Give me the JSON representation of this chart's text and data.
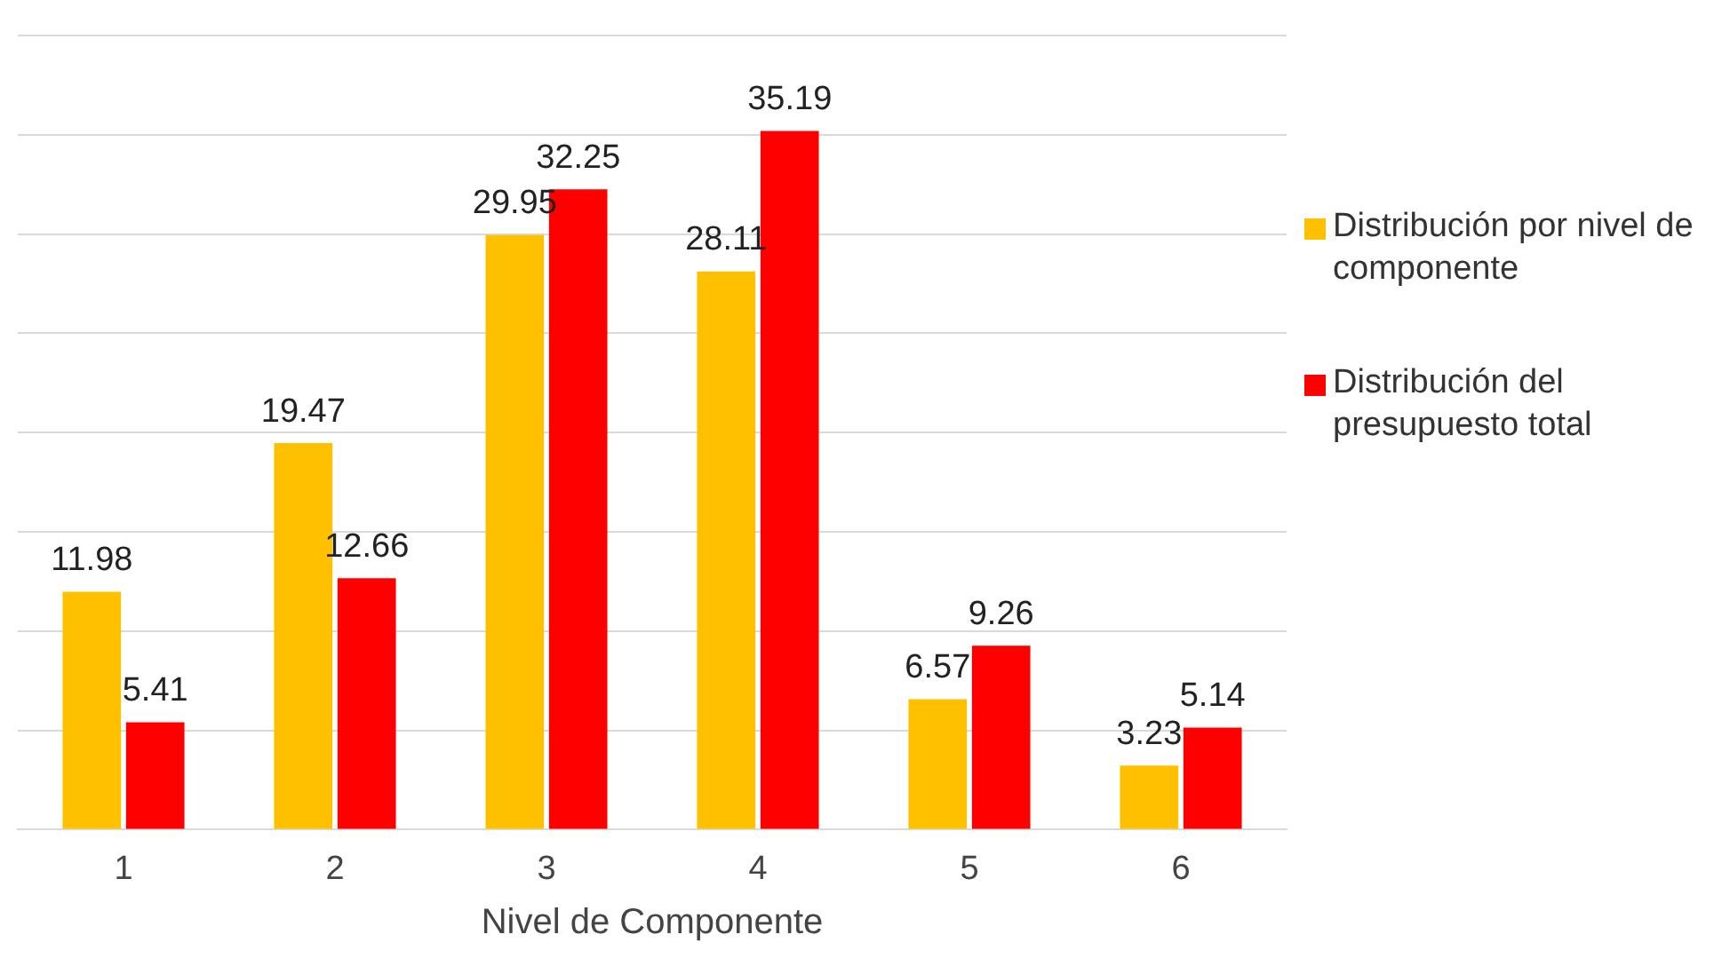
{
  "chart_data": {
    "type": "bar",
    "xlabel": "Nivel de Componente",
    "categories": [
      "1",
      "2",
      "3",
      "4",
      "5",
      "6"
    ],
    "series": [
      {
        "name": "Distribución por nivel de componente",
        "color": "#ffc000",
        "values": [
          11.98,
          19.47,
          29.95,
          28.11,
          6.57,
          3.23
        ]
      },
      {
        "name": "Distribución del presupuesto total",
        "color": "#ff0000",
        "values": [
          5.41,
          12.66,
          32.25,
          35.19,
          9.26,
          5.14
        ]
      }
    ],
    "ylim": [
      0,
      40
    ],
    "yticks": [
      {
        "value": 0,
        "label": null
      },
      {
        "value": 5,
        "label": null
      },
      {
        "value": 10,
        "label": null
      },
      {
        "value": 15,
        "label": null
      },
      {
        "value": 20,
        "label": null
      },
      {
        "value": 25,
        "label": null
      },
      {
        "value": 30,
        "label": null
      },
      {
        "value": 35,
        "label": null
      },
      {
        "value": 40,
        "label": null
      }
    ],
    "tick_labels": "x",
    "grid": "y",
    "legend": "right",
    "data_labels": true
  }
}
